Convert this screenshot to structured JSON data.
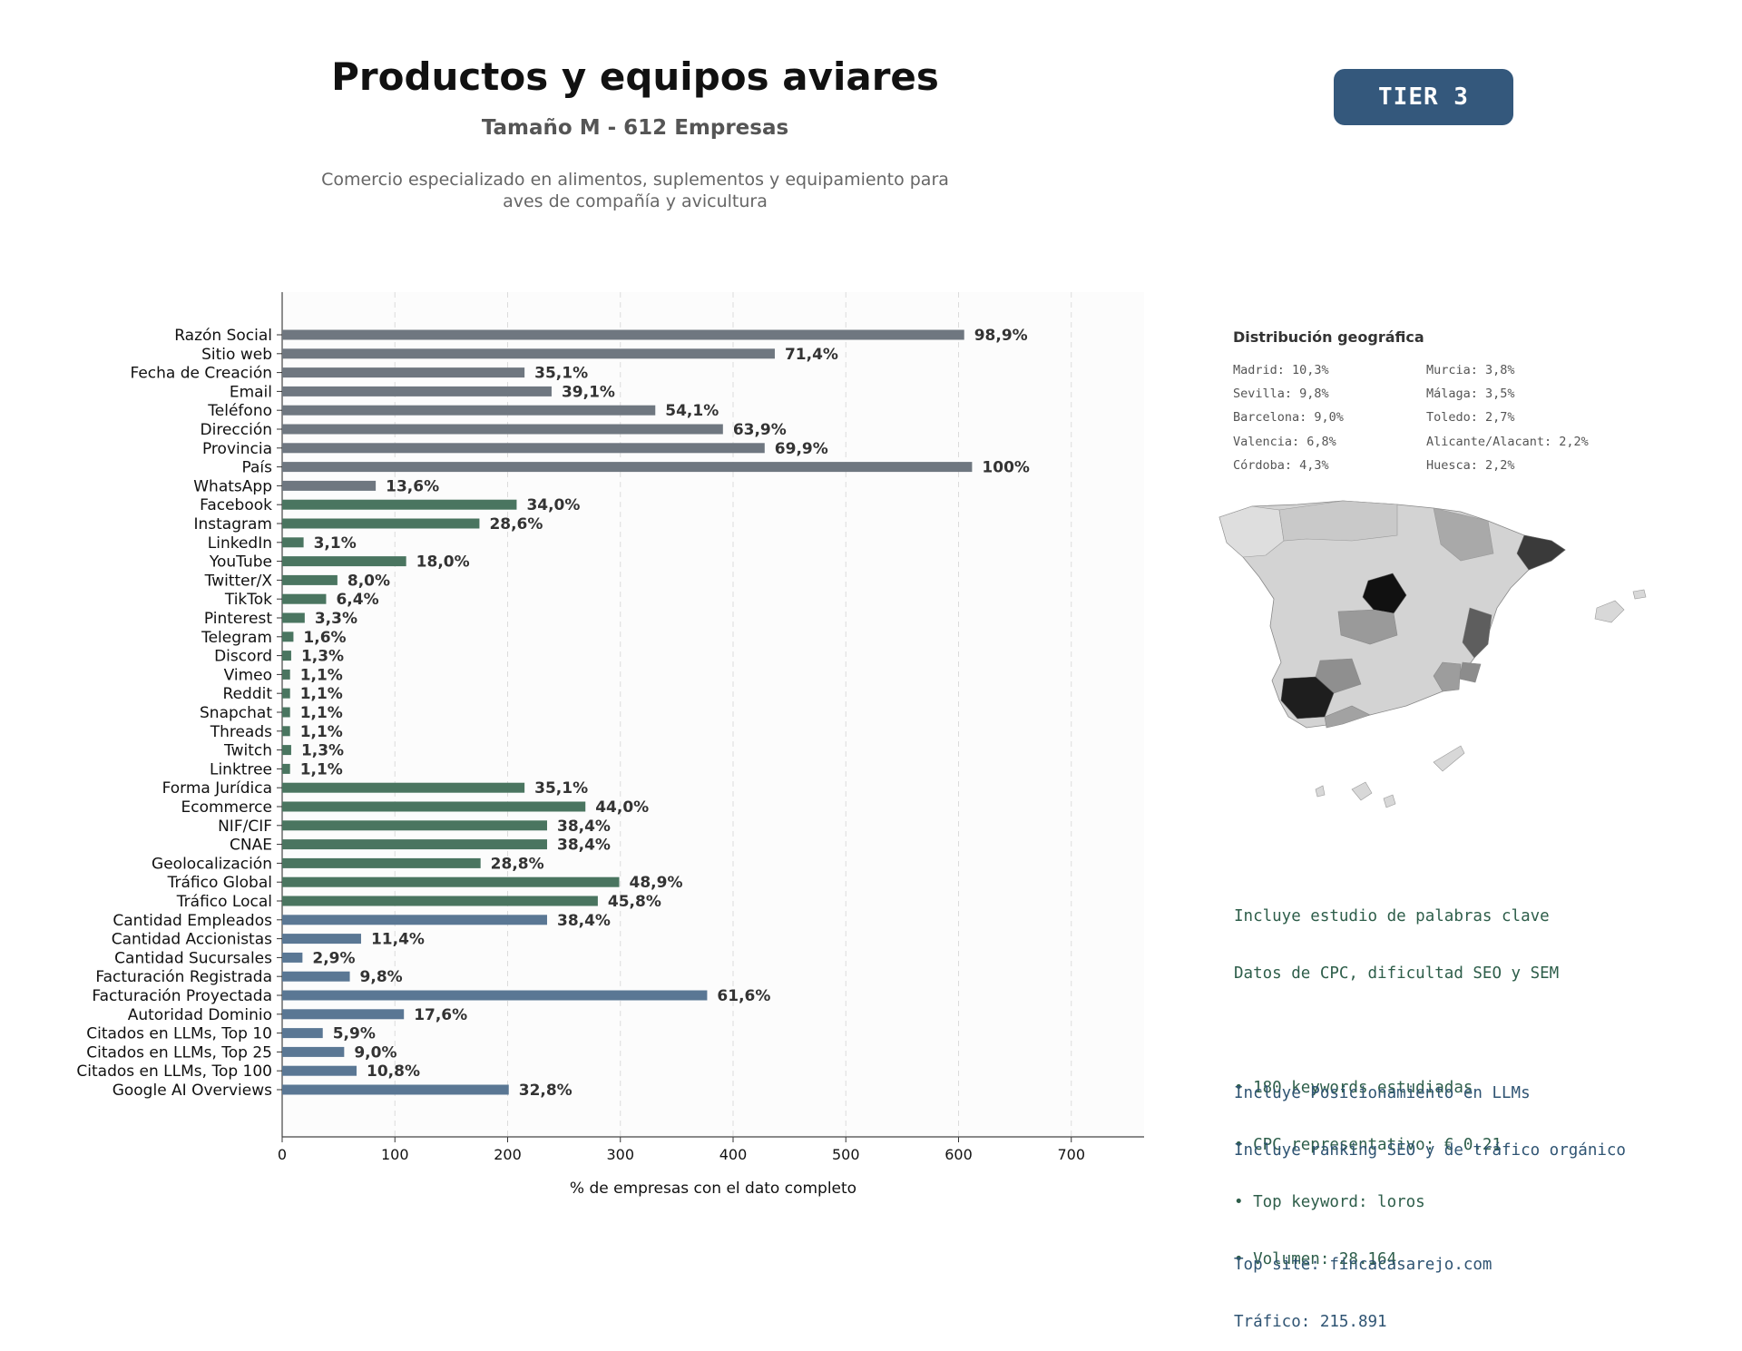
{
  "header": {
    "title": "Productos y equipos aviares",
    "subtitle": "Tamaño M - 612 Empresas",
    "description_line1": "Comercio especializado en alimentos, suplementos y equipamiento para",
    "description_line2": "aves de compañía y avicultura",
    "tier": "TIER 3"
  },
  "colors": {
    "gray": "#6f7780",
    "green": "#4a7560",
    "blue": "#5a7794",
    "tier_bg": "#34587c"
  },
  "chart_data": {
    "type": "bar",
    "orientation": "horizontal",
    "xlabel": "% de empresas con el dato completo",
    "xlim": [
      0,
      765
    ],
    "xticks": [
      0,
      100,
      200,
      300,
      400,
      500,
      600,
      700
    ],
    "grid": "vertical dashed",
    "categories": [
      "Razón Social",
      "Sitio web",
      "Fecha de Creación",
      "Email",
      "Teléfono",
      "Dirección",
      "Provincia",
      "País",
      "WhatsApp",
      "Facebook",
      "Instagram",
      "LinkedIn",
      "YouTube",
      "Twitter/X",
      "TikTok",
      "Pinterest",
      "Telegram",
      "Discord",
      "Vimeo",
      "Reddit",
      "Snapchat",
      "Threads",
      "Twitch",
      "Linktree",
      "Forma Jurídica",
      "Ecommerce",
      "NIF/CIF",
      "CNAE",
      "Geolocalización",
      "Tráfico Global",
      "Tráfico Local",
      "Cantidad Empleados",
      "Cantidad Accionistas",
      "Cantidad Sucursales",
      "Facturación Registrada",
      "Facturación Proyectada",
      "Autoridad Dominio",
      "Citados en LLMs, Top 10",
      "Citados en LLMs, Top 25",
      "Citados en LLMs, Top 100",
      "Google AI Overviews"
    ],
    "values": [
      605,
      437,
      215,
      239,
      331,
      391,
      428,
      612,
      83,
      208,
      175,
      19,
      110,
      49,
      39,
      20,
      10,
      8,
      7,
      7,
      7,
      7,
      8,
      7,
      215,
      269,
      235,
      235,
      176,
      299,
      280,
      235,
      70,
      18,
      60,
      377,
      108,
      36,
      55,
      66,
      201
    ],
    "labels": [
      "98,9%",
      "71,4%",
      "35,1%",
      "39,1%",
      "54,1%",
      "63,9%",
      "69,9%",
      "100%",
      "13,6%",
      "34,0%",
      "28,6%",
      "3,1%",
      "18,0%",
      "8,0%",
      "6,4%",
      "3,3%",
      "1,6%",
      "1,3%",
      "1,1%",
      "1,1%",
      "1,1%",
      "1,1%",
      "1,3%",
      "1,1%",
      "35,1%",
      "44,0%",
      "38,4%",
      "38,4%",
      "28,8%",
      "48,9%",
      "45,8%",
      "38,4%",
      "11,4%",
      "2,9%",
      "9,8%",
      "61,6%",
      "17,6%",
      "5,9%",
      "9,0%",
      "10,8%",
      "32,8%"
    ],
    "groups": [
      "gray",
      "gray",
      "gray",
      "gray",
      "gray",
      "gray",
      "gray",
      "gray",
      "gray",
      "green",
      "green",
      "green",
      "green",
      "green",
      "green",
      "green",
      "green",
      "green",
      "green",
      "green",
      "green",
      "green",
      "green",
      "green",
      "green",
      "green",
      "green",
      "green",
      "green",
      "green",
      "green",
      "blue",
      "blue",
      "blue",
      "blue",
      "blue",
      "blue",
      "blue",
      "blue",
      "blue",
      "blue"
    ]
  },
  "geo": {
    "title": "Distribución geográfica",
    "items_left": [
      "Madrid: 10,3%",
      "Sevilla: 9,8%",
      "Barcelona: 9,0%",
      "Valencia: 6,8%",
      "Córdoba: 4,3%"
    ],
    "items_right": [
      "Murcia: 3,8%",
      "Málaga: 3,5%",
      "Toledo: 2,7%",
      "Alicante/Alacant: 2,2%",
      "Huesca: 2,2%"
    ]
  },
  "seo": {
    "line1": "Incluye estudio de palabras clave",
    "line2": "Datos de CPC, dificultad SEO y SEM",
    "bullet1": "• 180 keywords estudiadas",
    "bullet2": "• CPC representativo: € 0.21",
    "bullet3": "• Top keyword: loros",
    "bullet4": "• Volumen: 28.164"
  },
  "llm": {
    "line1": "Incluye Posicionamiento en LLMs",
    "line2": "Incluye ranking SEO y de tráfico orgánico",
    "line3": "Top site: fincacasarejo.com",
    "line4": "Tráfico: 215.891"
  }
}
